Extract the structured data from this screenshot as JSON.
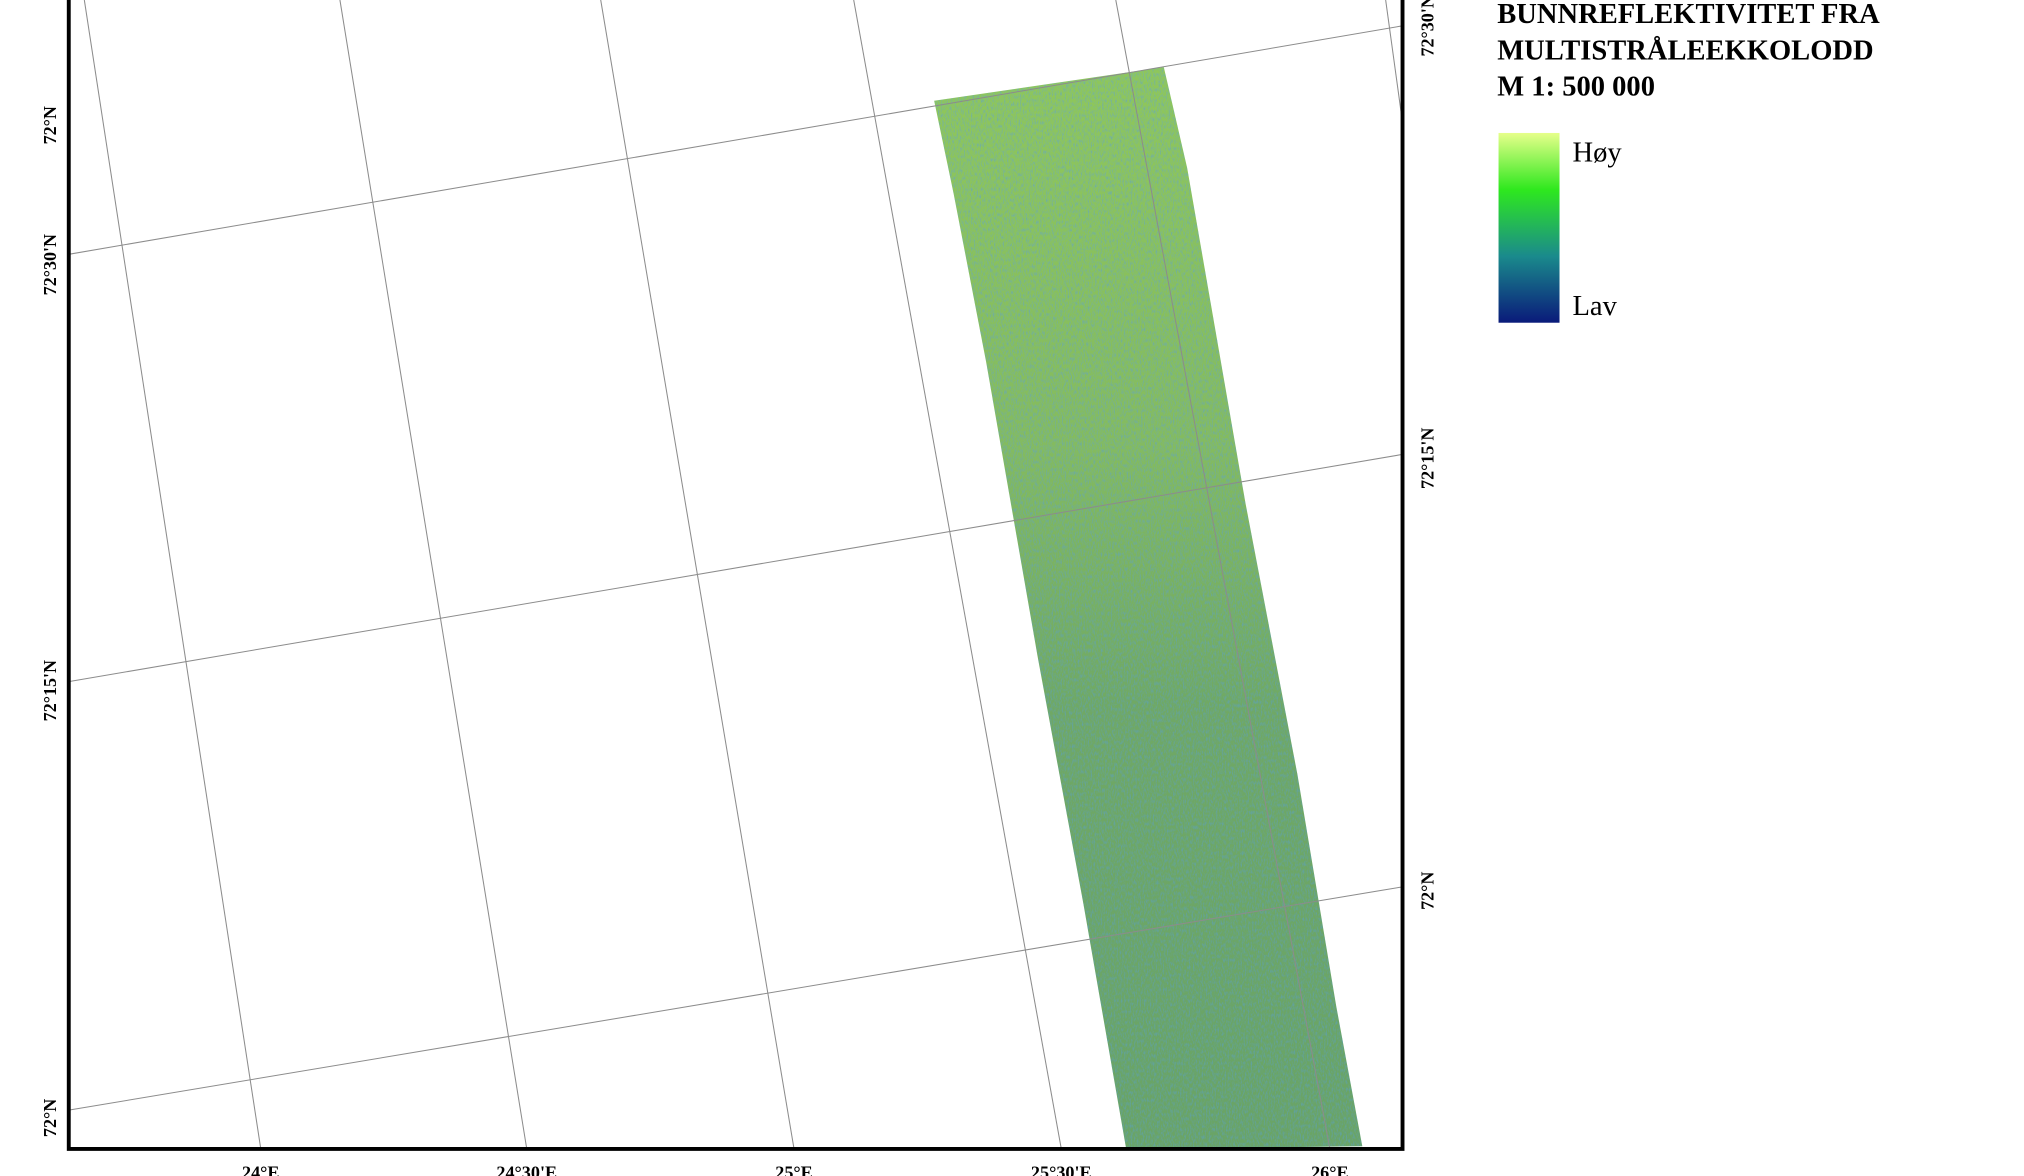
{
  "legend": {
    "title": [
      "BUNNREFLEKTIVITET FRA",
      "MULTISTRÅLEEKKOLODD",
      "M 1: 500 000"
    ],
    "high": "Høy",
    "low": "Lav"
  },
  "axes": {
    "bottom": [
      "24°E",
      "24°30'E",
      "25°E",
      "25°30'E",
      "26°E"
    ],
    "left": [
      "72°N",
      "72°30'N",
      "72°15'N",
      "72°N"
    ],
    "right": [
      "72°30'N",
      "72°15'N",
      "72°N"
    ]
  }
}
